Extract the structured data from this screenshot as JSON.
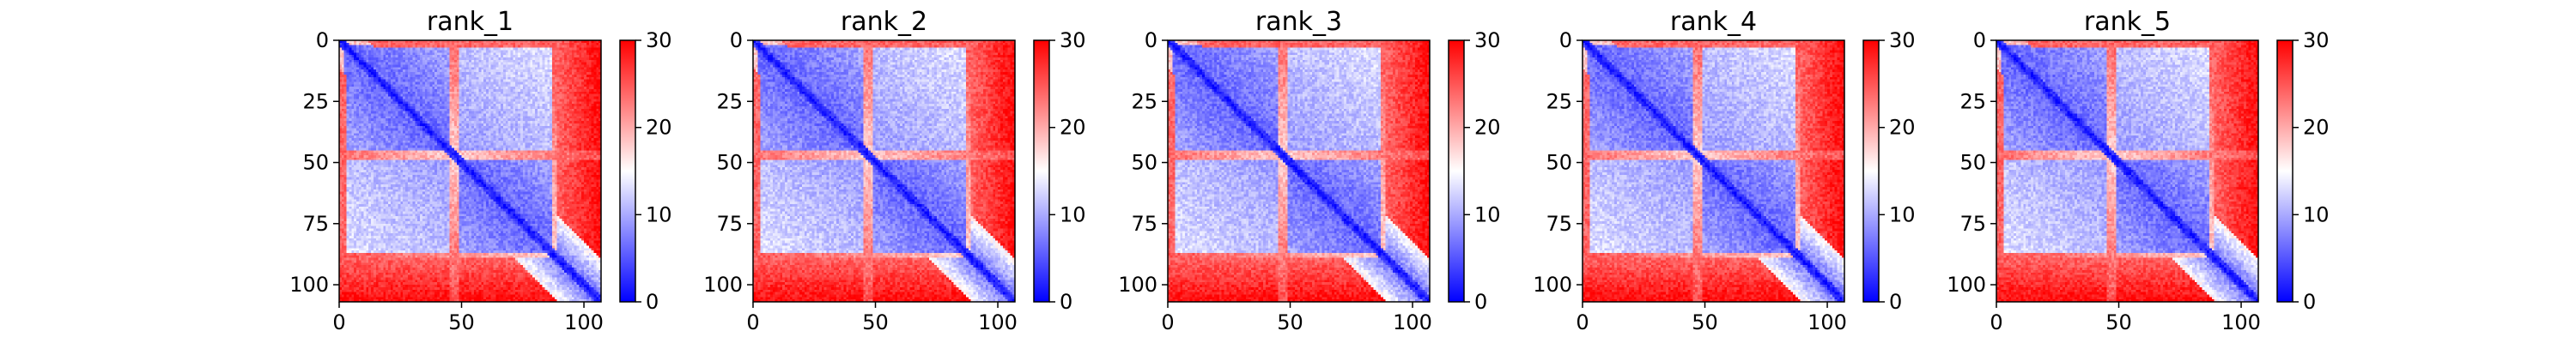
{
  "figure": {
    "background": "#ffffff"
  },
  "chart_data": [
    {
      "type": "heatmap",
      "title": "rank_1",
      "x_range": [
        0,
        107
      ],
      "y_range": [
        107,
        0
      ],
      "x_ticks": [
        0,
        50,
        100
      ],
      "y_ticks": [
        0,
        25,
        50,
        75,
        100
      ],
      "colorbar": {
        "range": [
          0,
          30
        ],
        "ticks": [
          0,
          10,
          20,
          30
        ],
        "colors": [
          "#0000ff",
          "#ffffff",
          "#ff0000"
        ]
      },
      "grid": false
    },
    {
      "type": "heatmap",
      "title": "rank_2",
      "x_range": [
        0,
        107
      ],
      "y_range": [
        107,
        0
      ],
      "x_ticks": [
        0,
        50,
        100
      ],
      "y_ticks": [
        0,
        25,
        50,
        75,
        100
      ],
      "colorbar": {
        "range": [
          0,
          30
        ],
        "ticks": [
          0,
          10,
          20,
          30
        ],
        "colors": [
          "#0000ff",
          "#ffffff",
          "#ff0000"
        ]
      },
      "grid": false
    },
    {
      "type": "heatmap",
      "title": "rank_3",
      "x_range": [
        0,
        107
      ],
      "y_range": [
        107,
        0
      ],
      "x_ticks": [
        0,
        50,
        100
      ],
      "y_ticks": [
        0,
        25,
        50,
        75,
        100
      ],
      "colorbar": {
        "range": [
          0,
          30
        ],
        "ticks": [
          0,
          10,
          20,
          30
        ],
        "colors": [
          "#0000ff",
          "#ffffff",
          "#ff0000"
        ]
      },
      "grid": false
    },
    {
      "type": "heatmap",
      "title": "rank_4",
      "x_range": [
        0,
        107
      ],
      "y_range": [
        107,
        0
      ],
      "x_ticks": [
        0,
        50,
        100
      ],
      "y_ticks": [
        0,
        25,
        50,
        75,
        100
      ],
      "colorbar": {
        "range": [
          0,
          30
        ],
        "ticks": [
          0,
          10,
          20,
          30
        ],
        "colors": [
          "#0000ff",
          "#ffffff",
          "#ff0000"
        ]
      },
      "grid": false
    },
    {
      "type": "heatmap",
      "title": "rank_5",
      "x_range": [
        0,
        107
      ],
      "y_range": [
        107,
        0
      ],
      "x_ticks": [
        0,
        50,
        100
      ],
      "y_ticks": [
        0,
        25,
        50,
        75,
        100
      ],
      "colorbar": {
        "range": [
          0,
          30
        ],
        "ticks": [
          0,
          10,
          20,
          30
        ],
        "colors": [
          "#0000ff",
          "#ffffff",
          "#ff0000"
        ]
      },
      "grid": false
    }
  ]
}
